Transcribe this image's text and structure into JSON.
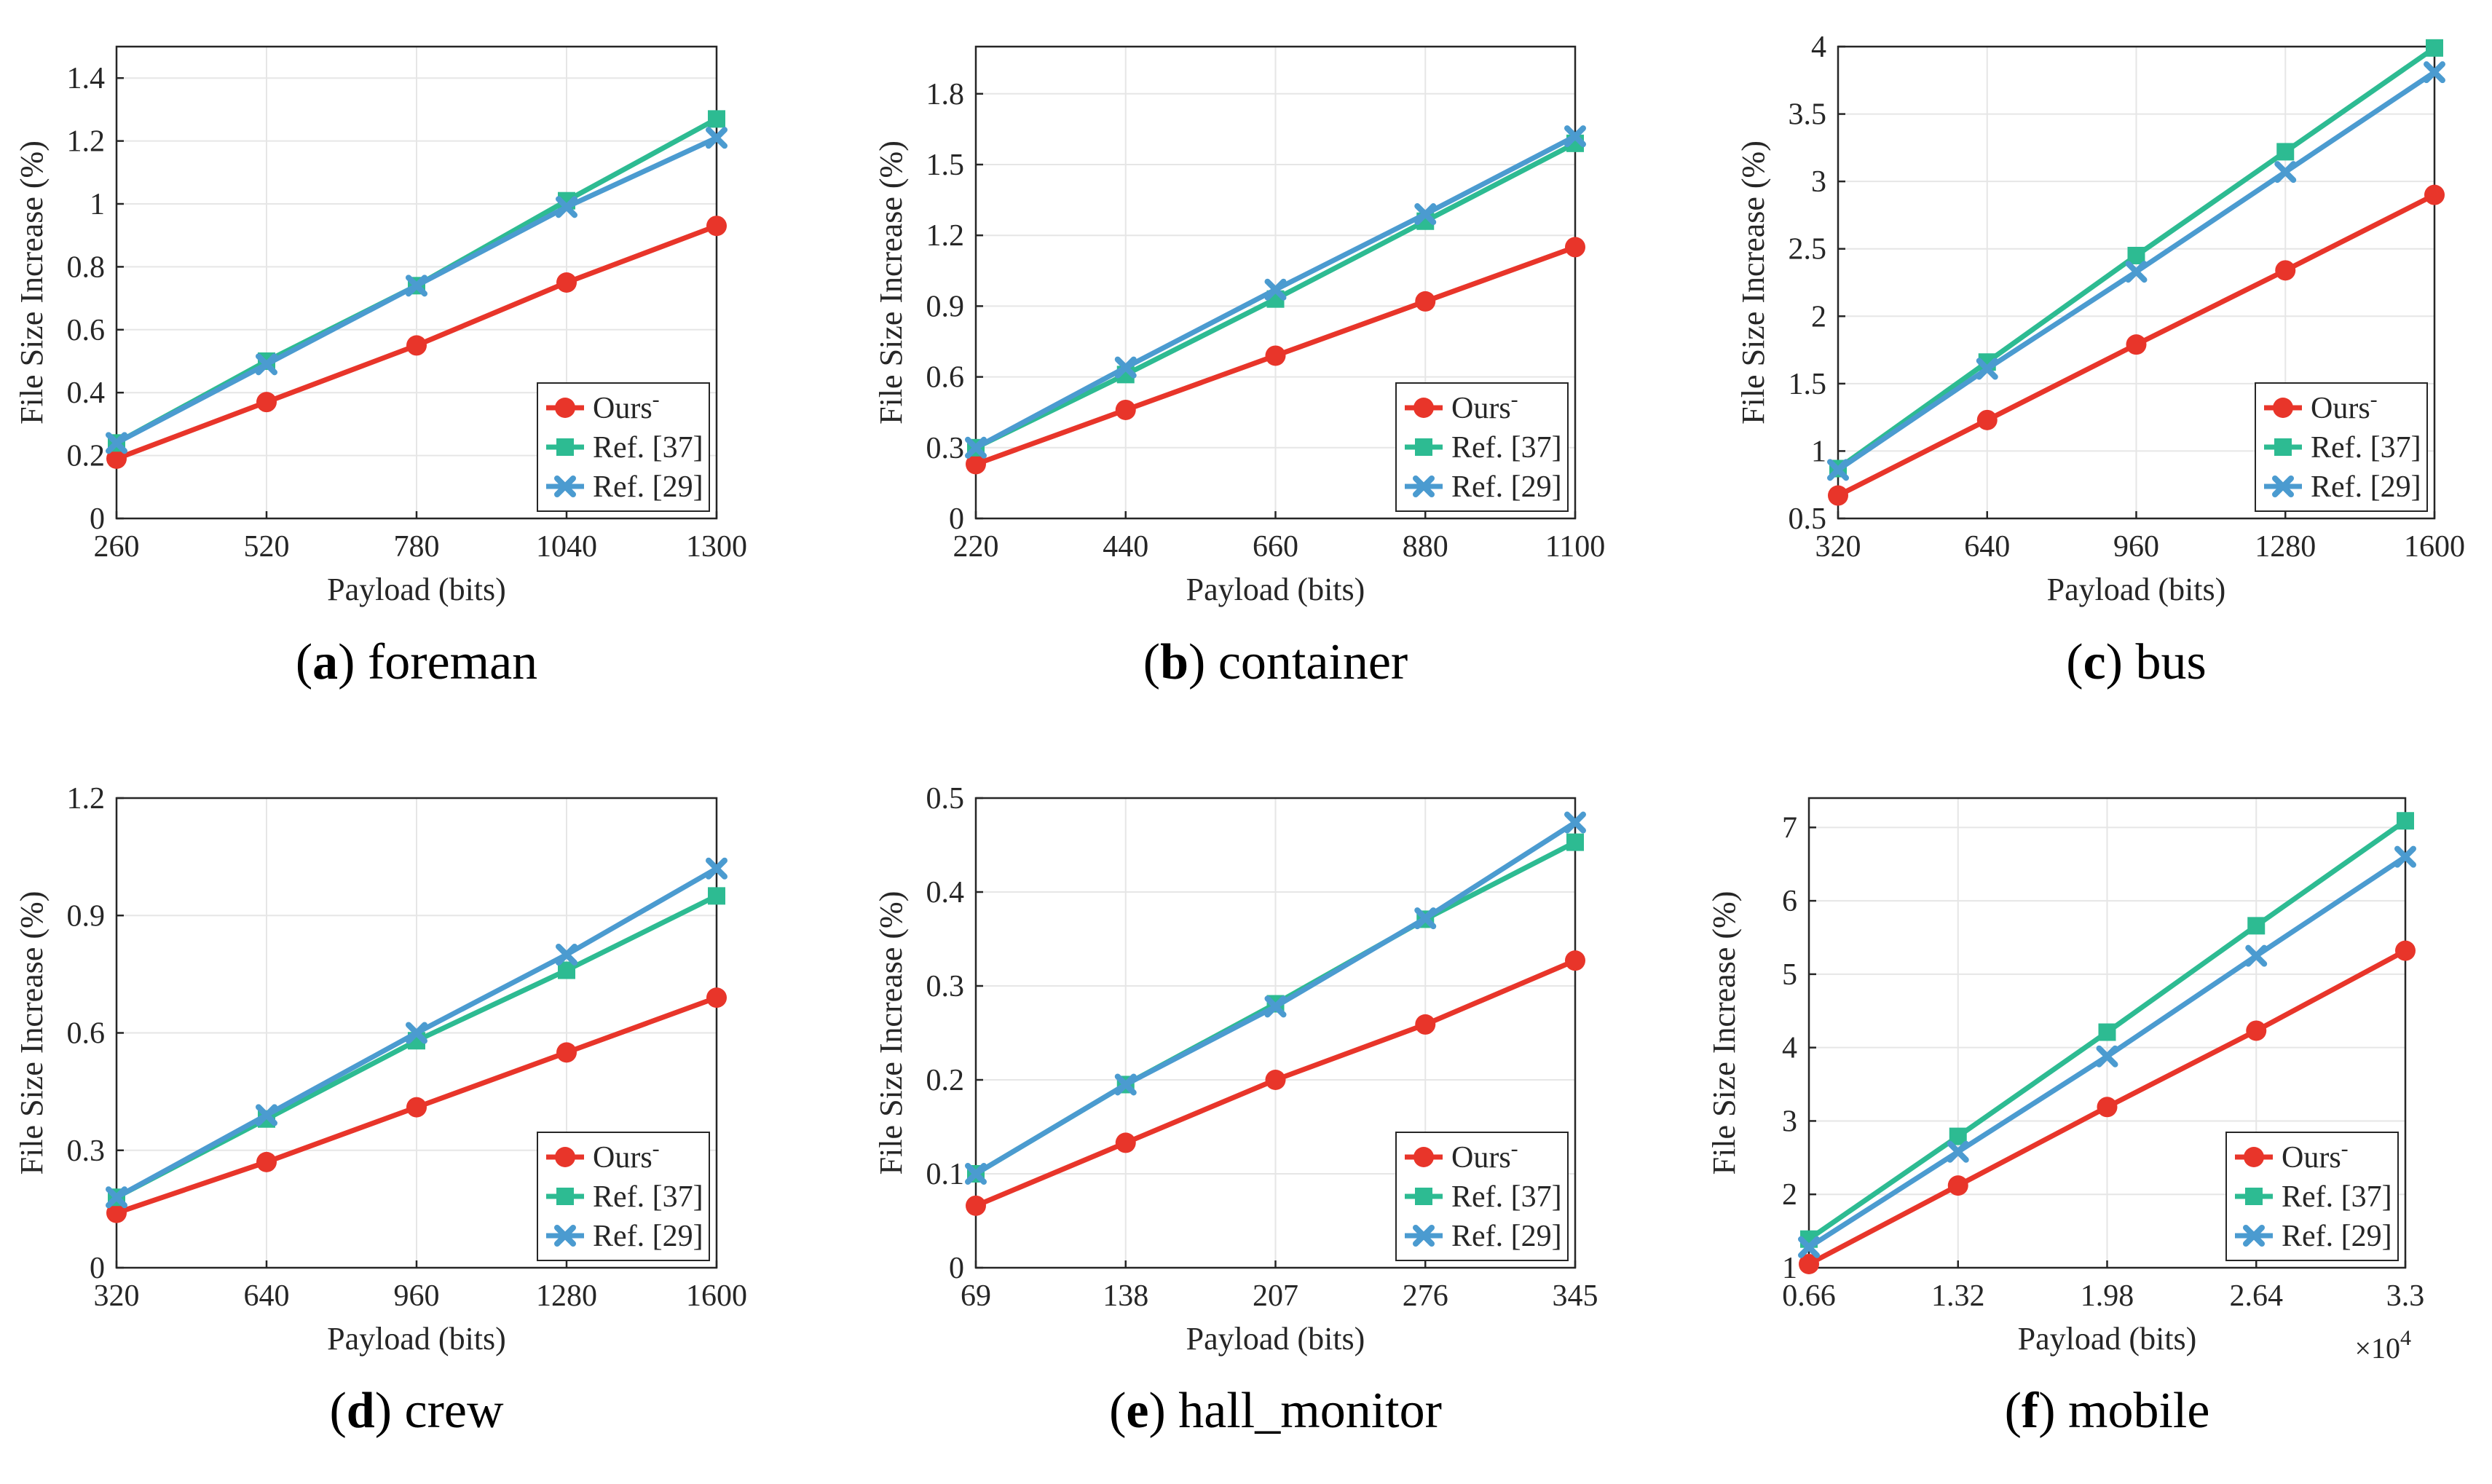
{
  "chart_data": [
    {
      "type": "line",
      "caption_letter": "a",
      "caption_name": "foreman",
      "xlabel": "Payload (bits)",
      "ylabel": "File Size Increase (%)",
      "x": [
        260,
        520,
        780,
        1040,
        1300
      ],
      "xticks": [
        "260",
        "520",
        "780",
        "1040",
        "1300"
      ],
      "xlim": [
        260,
        1300
      ],
      "ylim": [
        0,
        1.5
      ],
      "yticks": [
        "0",
        "0.2",
        "0.4",
        "0.6",
        "0.8",
        "1",
        "1.2",
        "1.4"
      ],
      "ytick_values": [
        0,
        0.2,
        0.4,
        0.6,
        0.8,
        1.0,
        1.2,
        1.4
      ],
      "exponent": "",
      "grid": true,
      "legend_position": "bottom-right",
      "series": [
        {
          "name": "Ours",
          "superscript": "-",
          "values": [
            0.19,
            0.37,
            0.55,
            0.75,
            0.93
          ]
        },
        {
          "name": "Ref. [37]",
          "values": [
            0.24,
            0.5,
            0.74,
            1.01,
            1.27
          ]
        },
        {
          "name": "Ref. [29]",
          "values": [
            0.24,
            0.49,
            0.74,
            0.99,
            1.21
          ]
        }
      ]
    },
    {
      "type": "line",
      "caption_letter": "b",
      "caption_name": "container",
      "xlabel": "Payload (bits)",
      "ylabel": "File Size Increase (%)",
      "x": [
        220,
        440,
        660,
        880,
        1100
      ],
      "xticks": [
        "220",
        "440",
        "660",
        "880",
        "1100"
      ],
      "xlim": [
        220,
        1100
      ],
      "ylim": [
        0,
        2.0
      ],
      "yticks": [
        "0",
        "0.3",
        "0.6",
        "0.9",
        "1.2",
        "1.5",
        "1.8"
      ],
      "ytick_values": [
        0,
        0.3,
        0.6,
        0.9,
        1.2,
        1.5,
        1.8
      ],
      "exponent": "",
      "grid": true,
      "legend_position": "bottom-right",
      "series": [
        {
          "name": "Ours",
          "superscript": "-",
          "values": [
            0.23,
            0.46,
            0.69,
            0.92,
            1.15
          ]
        },
        {
          "name": "Ref. [37]",
          "values": [
            0.3,
            0.61,
            0.93,
            1.26,
            1.59
          ]
        },
        {
          "name": "Ref. [29]",
          "values": [
            0.3,
            0.64,
            0.97,
            1.29,
            1.62
          ]
        }
      ]
    },
    {
      "type": "line",
      "caption_letter": "c",
      "caption_name": "bus",
      "xlabel": "Payload (bits)",
      "ylabel": "File Size Increase (%)",
      "x": [
        320,
        640,
        960,
        1280,
        1600
      ],
      "xticks": [
        "320",
        "640",
        "960",
        "1280",
        "1600"
      ],
      "xlim": [
        320,
        1600
      ],
      "ylim": [
        0.5,
        4.0
      ],
      "yticks": [
        "0.5",
        "1",
        "1.5",
        "2",
        "2.5",
        "3",
        "3.5",
        "4"
      ],
      "ytick_values": [
        0.5,
        1.0,
        1.5,
        2.0,
        2.5,
        3.0,
        3.5,
        4.0
      ],
      "exponent": "",
      "grid": true,
      "legend_position": "bottom-right",
      "series": [
        {
          "name": "Ours",
          "superscript": "-",
          "values": [
            0.67,
            1.23,
            1.79,
            2.34,
            2.9
          ]
        },
        {
          "name": "Ref. [37]",
          "values": [
            0.87,
            1.66,
            2.45,
            3.22,
            3.99
          ]
        },
        {
          "name": "Ref. [29]",
          "values": [
            0.86,
            1.61,
            2.33,
            3.07,
            3.81
          ]
        }
      ]
    },
    {
      "type": "line",
      "caption_letter": "d",
      "caption_name": "crew",
      "xlabel": "Payload (bits)",
      "ylabel": "File Size Increase (%)",
      "x": [
        320,
        640,
        960,
        1280,
        1600
      ],
      "xticks": [
        "320",
        "640",
        "960",
        "1280",
        "1600"
      ],
      "xlim": [
        320,
        1600
      ],
      "ylim": [
        0,
        1.2
      ],
      "yticks": [
        "0",
        "0.3",
        "0.6",
        "0.9",
        "1.2"
      ],
      "ytick_values": [
        0,
        0.3,
        0.6,
        0.9,
        1.2
      ],
      "exponent": "",
      "grid": true,
      "legend_position": "bottom-right",
      "series": [
        {
          "name": "Ours",
          "superscript": "-",
          "values": [
            0.14,
            0.27,
            0.41,
            0.55,
            0.69
          ]
        },
        {
          "name": "Ref. [37]",
          "values": [
            0.18,
            0.38,
            0.58,
            0.76,
            0.95
          ]
        },
        {
          "name": "Ref. [29]",
          "values": [
            0.18,
            0.39,
            0.6,
            0.8,
            1.02
          ]
        }
      ]
    },
    {
      "type": "line",
      "caption_letter": "e",
      "caption_name": "hall_monitor",
      "xlabel": "Payload (bits)",
      "ylabel": "File Size Increase (%)",
      "x": [
        69,
        138,
        207,
        276,
        345
      ],
      "xticks": [
        "69",
        "138",
        "207",
        "276",
        "345"
      ],
      "xlim": [
        69,
        345
      ],
      "ylim": [
        0,
        0.5
      ],
      "yticks": [
        "0",
        "0.1",
        "0.2",
        "0.3",
        "0.4",
        "0.5"
      ],
      "ytick_values": [
        0,
        0.1,
        0.2,
        0.3,
        0.4,
        0.5
      ],
      "exponent": "",
      "grid": true,
      "legend_position": "bottom-right",
      "series": [
        {
          "name": "Ours",
          "superscript": "-",
          "values": [
            0.066,
            0.133,
            0.2,
            0.259,
            0.327
          ]
        },
        {
          "name": "Ref. [37]",
          "values": [
            0.1,
            0.195,
            0.281,
            0.371,
            0.453
          ]
        },
        {
          "name": "Ref. [29]",
          "values": [
            0.1,
            0.195,
            0.278,
            0.372,
            0.474
          ]
        }
      ]
    },
    {
      "type": "line",
      "caption_letter": "f",
      "caption_name": "mobile",
      "xlabel": "Payload (bits)",
      "ylabel": "File Size Increase (%)",
      "x": [
        0.66,
        1.32,
        1.98,
        2.64,
        3.3
      ],
      "xticks": [
        "0.66",
        "1.32",
        "1.98",
        "2.64",
        "3.3"
      ],
      "xlim": [
        0.66,
        3.3
      ],
      "ylim": [
        1,
        7.4
      ],
      "yticks": [
        "1",
        "2",
        "3",
        "4",
        "5",
        "6",
        "7"
      ],
      "ytick_values": [
        1,
        2,
        3,
        4,
        5,
        6,
        7
      ],
      "exponent": "×10",
      "exponent_power": "4",
      "grid": true,
      "legend_position": "bottom-right",
      "series": [
        {
          "name": "Ours",
          "superscript": "-",
          "values": [
            1.05,
            2.12,
            3.19,
            4.23,
            5.32
          ]
        },
        {
          "name": "Ref. [37]",
          "values": [
            1.39,
            2.79,
            4.21,
            5.66,
            7.09
          ]
        },
        {
          "name": "Ref. [29]",
          "values": [
            1.28,
            2.58,
            3.88,
            5.25,
            6.6
          ]
        }
      ]
    }
  ],
  "colors": {
    "ours": "#e8352a",
    "ref37": "#2dbb92",
    "ref29": "#4b9bd0",
    "grid": "#e6e6e6",
    "axis": "#262626"
  }
}
